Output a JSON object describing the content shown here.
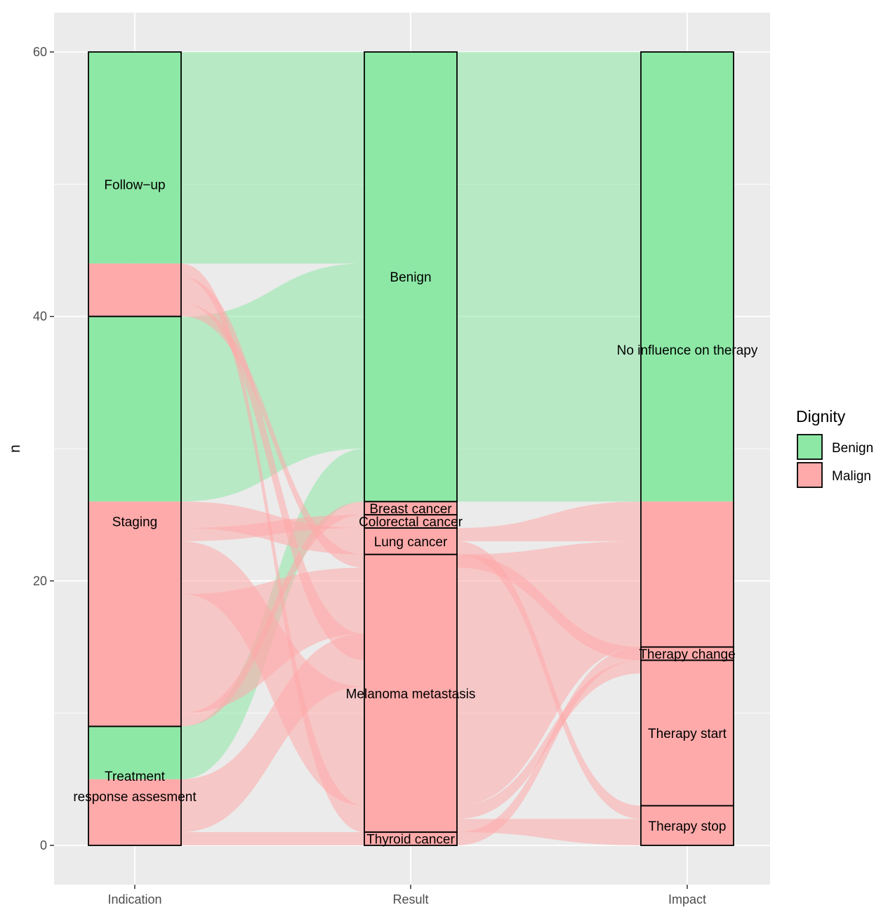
{
  "chart_data": {
    "type": "alluvial",
    "ylabel": "n",
    "ylim": [
      -3,
      63
    ],
    "yticks": [
      0,
      20,
      40,
      60
    ],
    "axes": [
      "Indication",
      "Result",
      "Impact"
    ],
    "colors": {
      "Benign": "#8DE8A6",
      "Malign": "#FFAAAA",
      "panel": "#EBEBEB",
      "grid": "#FFFFFF"
    },
    "legend": {
      "title": "Dignity",
      "position": "right",
      "entries": [
        "Benign",
        "Malign"
      ]
    },
    "strata": [
      {
        "axis": "Indication",
        "blocks": [
          {
            "label": "Follow−up",
            "lines": [
              "Follow−up"
            ],
            "from": 40,
            "to": 60,
            "label_at": 50
          },
          {
            "label": "Staging",
            "lines": [
              "Staging"
            ],
            "from": 9,
            "to": 40,
            "label_at": 24.5
          },
          {
            "label": "Treatment response assesment",
            "lines": [
              "Treatment",
              "response assesment"
            ],
            "from": 0,
            "to": 9,
            "label_at": 4.5
          }
        ]
      },
      {
        "axis": "Result",
        "blocks": [
          {
            "label": "Benign",
            "lines": [
              "Benign"
            ],
            "from": 26,
            "to": 60,
            "label_at": 43
          },
          {
            "label": "Breast cancer",
            "lines": [
              "Breast cancer"
            ],
            "from": 25,
            "to": 26,
            "label_at": 25.5
          },
          {
            "label": "Colorectal cancer",
            "lines": [
              "Colorectal cancer"
            ],
            "from": 24,
            "to": 25,
            "label_at": 24.5
          },
          {
            "label": "Lung cancer",
            "lines": [
              "Lung cancer"
            ],
            "from": 22,
            "to": 24,
            "label_at": 23
          },
          {
            "label": "Melanoma metastasis",
            "lines": [
              "Melanoma metastasis"
            ],
            "from": 1,
            "to": 22,
            "label_at": 11.5
          },
          {
            "label": "Thyroid cancer",
            "lines": [
              "Thyroid cancer"
            ],
            "from": 0,
            "to": 1,
            "label_at": 0.5
          }
        ]
      },
      {
        "axis": "Impact",
        "blocks": [
          {
            "label": "No influence on therapy",
            "lines": [
              "No influence on therapy"
            ],
            "from": 15,
            "to": 60,
            "label_at": 37.5
          },
          {
            "label": "Therapy change",
            "lines": [
              "Therapy change"
            ],
            "from": 14,
            "to": 15,
            "label_at": 14.5
          },
          {
            "label": "Therapy start",
            "lines": [
              "Therapy start"
            ],
            "from": 3,
            "to": 14,
            "label_at": 8.5
          },
          {
            "label": "Therapy stop",
            "lines": [
              "Therapy stop"
            ],
            "from": 0,
            "to": 3,
            "label_at": 1.5
          }
        ]
      }
    ],
    "fills": [
      {
        "axis": "Indication",
        "dignity": "Benign",
        "from": 44,
        "to": 60
      },
      {
        "axis": "Indication",
        "dignity": "Malign",
        "from": 40,
        "to": 44
      },
      {
        "axis": "Indication",
        "dignity": "Benign",
        "from": 26,
        "to": 40
      },
      {
        "axis": "Indication",
        "dignity": "Malign",
        "from": 9,
        "to": 26
      },
      {
        "axis": "Indication",
        "dignity": "Benign",
        "from": 5,
        "to": 9
      },
      {
        "axis": "Indication",
        "dignity": "Malign",
        "from": 0,
        "to": 5
      },
      {
        "axis": "Result",
        "dignity": "Benign",
        "from": 26,
        "to": 60
      },
      {
        "axis": "Result",
        "dignity": "Malign",
        "from": 0,
        "to": 26
      },
      {
        "axis": "Impact",
        "dignity": "Benign",
        "from": 26,
        "to": 60
      },
      {
        "axis": "Impact",
        "dignity": "Malign",
        "from": 0,
        "to": 26
      }
    ],
    "flows": [
      {
        "dignity": "Benign",
        "left": [
          44,
          60
        ],
        "mid": [
          44,
          60
        ],
        "right": [
          44,
          60
        ]
      },
      {
        "dignity": "Benign",
        "left": [
          26,
          40
        ],
        "mid": [
          30,
          44
        ],
        "right": [
          30,
          44
        ]
      },
      {
        "dignity": "Benign",
        "left": [
          5,
          9
        ],
        "mid": [
          26,
          30
        ],
        "right": [
          26,
          30
        ]
      },
      {
        "dignity": "Malign",
        "left": [
          9,
          10
        ],
        "mid": [
          25,
          26
        ],
        "right": [
          25,
          26
        ]
      },
      {
        "dignity": "Malign",
        "left": [
          23,
          24
        ],
        "mid": [
          24,
          25
        ],
        "right": [
          24,
          25
        ]
      },
      {
        "dignity": "Malign",
        "left": [
          24,
          26
        ],
        "mid": [
          22,
          24
        ],
        "right": [
          22,
          23
        ],
        "right_split": [
          [
            15,
            23
          ],
          [
            14,
            15
          ],
          [
            3,
            14
          ],
          [
            0,
            3
          ]
        ]
      },
      {
        "dignity": "Malign",
        "left": [
          40,
          41
        ],
        "mid": [
          21,
          22
        ],
        "right": [
          21,
          22
        ]
      },
      {
        "dignity": "Malign",
        "left": [
          10,
          19
        ],
        "mid": [
          16,
          21
        ],
        "right": [
          16,
          21
        ]
      },
      {
        "dignity": "Malign",
        "left": [
          41,
          43
        ],
        "mid": [
          14,
          16
        ],
        "right": [
          14,
          16
        ]
      },
      {
        "dignity": "Malign",
        "left": [
          1,
          5
        ],
        "mid": [
          12,
          16
        ],
        "right": [
          12,
          16
        ]
      },
      {
        "dignity": "Malign",
        "left": [
          19,
          23
        ],
        "mid": [
          3,
          12
        ],
        "right": [
          3,
          12
        ]
      },
      {
        "dignity": "Malign",
        "left": [
          43,
          44
        ],
        "mid": [
          1,
          3
        ],
        "right": [
          1,
          3
        ]
      },
      {
        "dignity": "Malign",
        "left": [
          0,
          1
        ],
        "mid": [
          0,
          1
        ],
        "right": [
          0,
          1
        ]
      }
    ],
    "mid_right_flows": [
      {
        "dignity": "Malign",
        "mid": [
          22,
          23
        ],
        "right": [
          2,
          3
        ]
      },
      {
        "dignity": "Malign",
        "mid": [
          23,
          24
        ],
        "right": [
          23,
          26
        ]
      },
      {
        "dignity": "Malign",
        "mid": [
          3,
          22
        ],
        "right": [
          15,
          23
        ]
      },
      {
        "dignity": "Malign",
        "mid": [
          21,
          22
        ],
        "right": [
          14,
          15
        ]
      },
      {
        "dignity": "Malign",
        "mid": [
          2,
          3
        ],
        "right": [
          13,
          14
        ]
      },
      {
        "dignity": "Malign",
        "mid": [
          0,
          1
        ],
        "right": [
          14,
          15
        ]
      },
      {
        "dignity": "Malign",
        "mid": [
          1,
          2
        ],
        "right": [
          0,
          2
        ]
      }
    ]
  }
}
